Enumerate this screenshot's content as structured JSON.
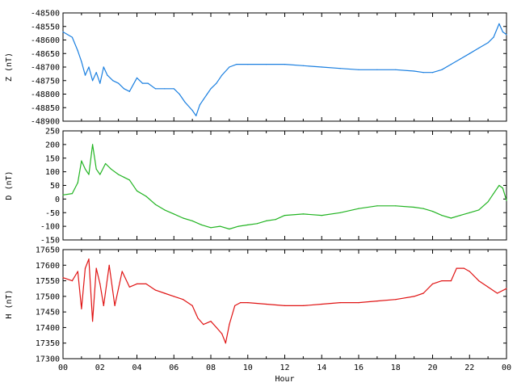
{
  "chart_data": [
    {
      "type": "line",
      "ylabel": "Z (nT)",
      "ylim": [
        -48900,
        -48500
      ],
      "yticks": [
        -48500,
        -48550,
        -48600,
        -48650,
        -48700,
        -48750,
        -48800,
        -48850,
        -48900
      ],
      "xlim": [
        0,
        24
      ],
      "color": "#1a7fe0",
      "series": [
        {
          "x": [
            0,
            0.5,
            0.8,
            1,
            1.2,
            1.4,
            1.6,
            1.8,
            2,
            2.2,
            2.4,
            2.7,
            3,
            3.3,
            3.6,
            4,
            4.3,
            4.6,
            5,
            5.5,
            6,
            6.3,
            6.6,
            7,
            7.2,
            7.4,
            7.6,
            7.8,
            8,
            8.3,
            8.6,
            9,
            9.4,
            10,
            11,
            12,
            13,
            14,
            15,
            16,
            17,
            18,
            19,
            19.5,
            20,
            20.5,
            21,
            21.5,
            22,
            22.5,
            23,
            23.3,
            23.6,
            23.8,
            24
          ],
          "y": [
            -48570,
            -48590,
            -48640,
            -48680,
            -48730,
            -48700,
            -48750,
            -48720,
            -48760,
            -48700,
            -48730,
            -48750,
            -48760,
            -48780,
            -48790,
            -48740,
            -48760,
            -48760,
            -48780,
            -48780,
            -48780,
            -48800,
            -48830,
            -48860,
            -48880,
            -48840,
            -48820,
            -48800,
            -48780,
            -48760,
            -48730,
            -48700,
            -48690,
            -48690,
            -48690,
            -48690,
            -48695,
            -48700,
            -48705,
            -48710,
            -48710,
            -48710,
            -48715,
            -48720,
            -48720,
            -48710,
            -48690,
            -48670,
            -48650,
            -48630,
            -48610,
            -48590,
            -48540,
            -48570,
            -48580
          ]
        }
      ]
    },
    {
      "type": "line",
      "ylabel": "D (nT)",
      "ylim": [
        -150,
        250
      ],
      "yticks": [
        250,
        200,
        150,
        100,
        50,
        0,
        -50,
        -100,
        -150
      ],
      "xlim": [
        0,
        24
      ],
      "color": "#22b422",
      "series": [
        {
          "x": [
            0,
            0.5,
            0.8,
            1,
            1.2,
            1.4,
            1.6,
            1.8,
            2,
            2.3,
            2.6,
            3,
            3.3,
            3.6,
            4,
            4.5,
            5,
            5.5,
            6,
            6.5,
            7,
            7.5,
            8,
            8.5,
            9,
            9.5,
            10,
            10.5,
            11,
            11.5,
            12,
            13,
            14,
            15,
            16,
            17,
            18,
            19,
            19.5,
            20,
            20.5,
            21,
            21.5,
            22,
            22.5,
            23,
            23.3,
            23.6,
            23.8,
            24
          ],
          "y": [
            15,
            20,
            60,
            140,
            110,
            90,
            200,
            110,
            90,
            130,
            110,
            90,
            80,
            70,
            30,
            10,
            -20,
            -40,
            -55,
            -70,
            -80,
            -95,
            -105,
            -100,
            -110,
            -100,
            -95,
            -90,
            -80,
            -75,
            -60,
            -55,
            -60,
            -50,
            -35,
            -25,
            -25,
            -30,
            -35,
            -45,
            -60,
            -70,
            -60,
            -50,
            -40,
            -10,
            20,
            50,
            40,
            -5
          ]
        }
      ]
    },
    {
      "type": "line",
      "ylabel": "H (nT)",
      "xlabel": "Hour",
      "ylim": [
        17300,
        17650
      ],
      "yticks": [
        17650,
        17600,
        17550,
        17500,
        17450,
        17400,
        17350,
        17300
      ],
      "xlim": [
        0,
        24
      ],
      "color": "#e01414",
      "series": [
        {
          "x": [
            0,
            0.5,
            0.8,
            1,
            1.2,
            1.4,
            1.6,
            1.8,
            2,
            2.2,
            2.5,
            2.8,
            3.2,
            3.6,
            4,
            4.5,
            5,
            5.5,
            6,
            6.5,
            7,
            7.3,
            7.6,
            8,
            8.3,
            8.6,
            8.8,
            9,
            9.3,
            9.6,
            10,
            11,
            12,
            13,
            14,
            15,
            16,
            17,
            18,
            19,
            19.5,
            20,
            20.5,
            21,
            21.3,
            21.7,
            22,
            22.5,
            23,
            23.5,
            24
          ],
          "y": [
            17560,
            17550,
            17580,
            17460,
            17590,
            17620,
            17420,
            17590,
            17540,
            17470,
            17600,
            17470,
            17580,
            17530,
            17540,
            17540,
            17520,
            17510,
            17500,
            17490,
            17470,
            17430,
            17410,
            17420,
            17400,
            17380,
            17350,
            17410,
            17470,
            17480,
            17480,
            17475,
            17470,
            17470,
            17475,
            17480,
            17480,
            17485,
            17490,
            17500,
            17510,
            17540,
            17550,
            17550,
            17590,
            17590,
            17580,
            17550,
            17530,
            17510,
            17525
          ]
        }
      ]
    }
  ],
  "x_tick_labels": [
    "00",
    "02",
    "04",
    "06",
    "08",
    "10",
    "12",
    "14",
    "16",
    "18",
    "20",
    "22",
    "00"
  ]
}
